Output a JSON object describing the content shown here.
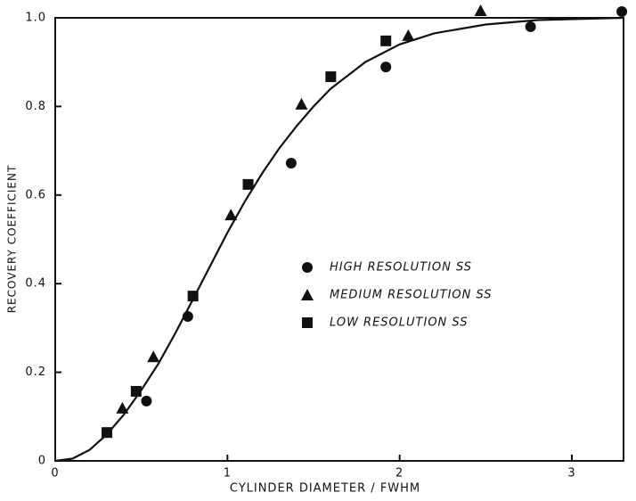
{
  "chart_data": {
    "type": "scatter",
    "xlabel": "CYLINDER DIAMETER / FWHM",
    "ylabel": "RECOVERY COEFFICIENT",
    "xlim": [
      0,
      3.3
    ],
    "ylim": [
      0,
      1.0
    ],
    "xticks": [
      0,
      1,
      2,
      3
    ],
    "yticks": [
      0,
      {
        "value": 0.2,
        "label": "0.2"
      },
      {
        "value": 0.4,
        "label": "0.4"
      },
      {
        "value": 0.6,
        "label": "0.6"
      },
      {
        "value": 0.8,
        "label": "0.8"
      },
      {
        "value": 1.0,
        "label": "1.0"
      }
    ],
    "series": [
      {
        "name": "HIGH RESOLUTION SS",
        "color": "#111111",
        "marker": "circle",
        "x": [
          0.53,
          0.77,
          1.37,
          1.92,
          2.76,
          3.29
        ],
        "values": [
          0.135,
          0.326,
          0.672,
          0.889,
          0.98,
          1.014
        ]
      },
      {
        "name": "MEDIUM RESOLUTION SS",
        "color": "#111111",
        "marker": "triangle",
        "x": [
          0.39,
          0.57,
          1.02,
          1.43,
          2.05,
          2.47
        ],
        "values": [
          0.119,
          0.235,
          0.555,
          0.805,
          0.96,
          1.016
        ]
      },
      {
        "name": "LOW RESOLUTION SS",
        "color": "#111111",
        "marker": "square",
        "x": [
          0.3,
          0.47,
          0.8,
          1.12,
          1.6,
          1.92
        ],
        "values": [
          0.064,
          0.157,
          0.372,
          0.624,
          0.867,
          0.948
        ]
      }
    ],
    "curve": {
      "color": "#111111",
      "x": [
        0,
        0.1,
        0.2,
        0.3,
        0.4,
        0.5,
        0.6,
        0.7,
        0.8,
        0.9,
        1.0,
        1.1,
        1.2,
        1.3,
        1.4,
        1.5,
        1.6,
        1.8,
        2.0,
        2.2,
        2.5,
        2.8,
        3.3
      ],
      "values": [
        0,
        0.005,
        0.025,
        0.06,
        0.105,
        0.16,
        0.22,
        0.29,
        0.365,
        0.44,
        0.515,
        0.585,
        0.648,
        0.705,
        0.755,
        0.8,
        0.84,
        0.9,
        0.94,
        0.965,
        0.985,
        0.995,
        1.0
      ]
    }
  }
}
